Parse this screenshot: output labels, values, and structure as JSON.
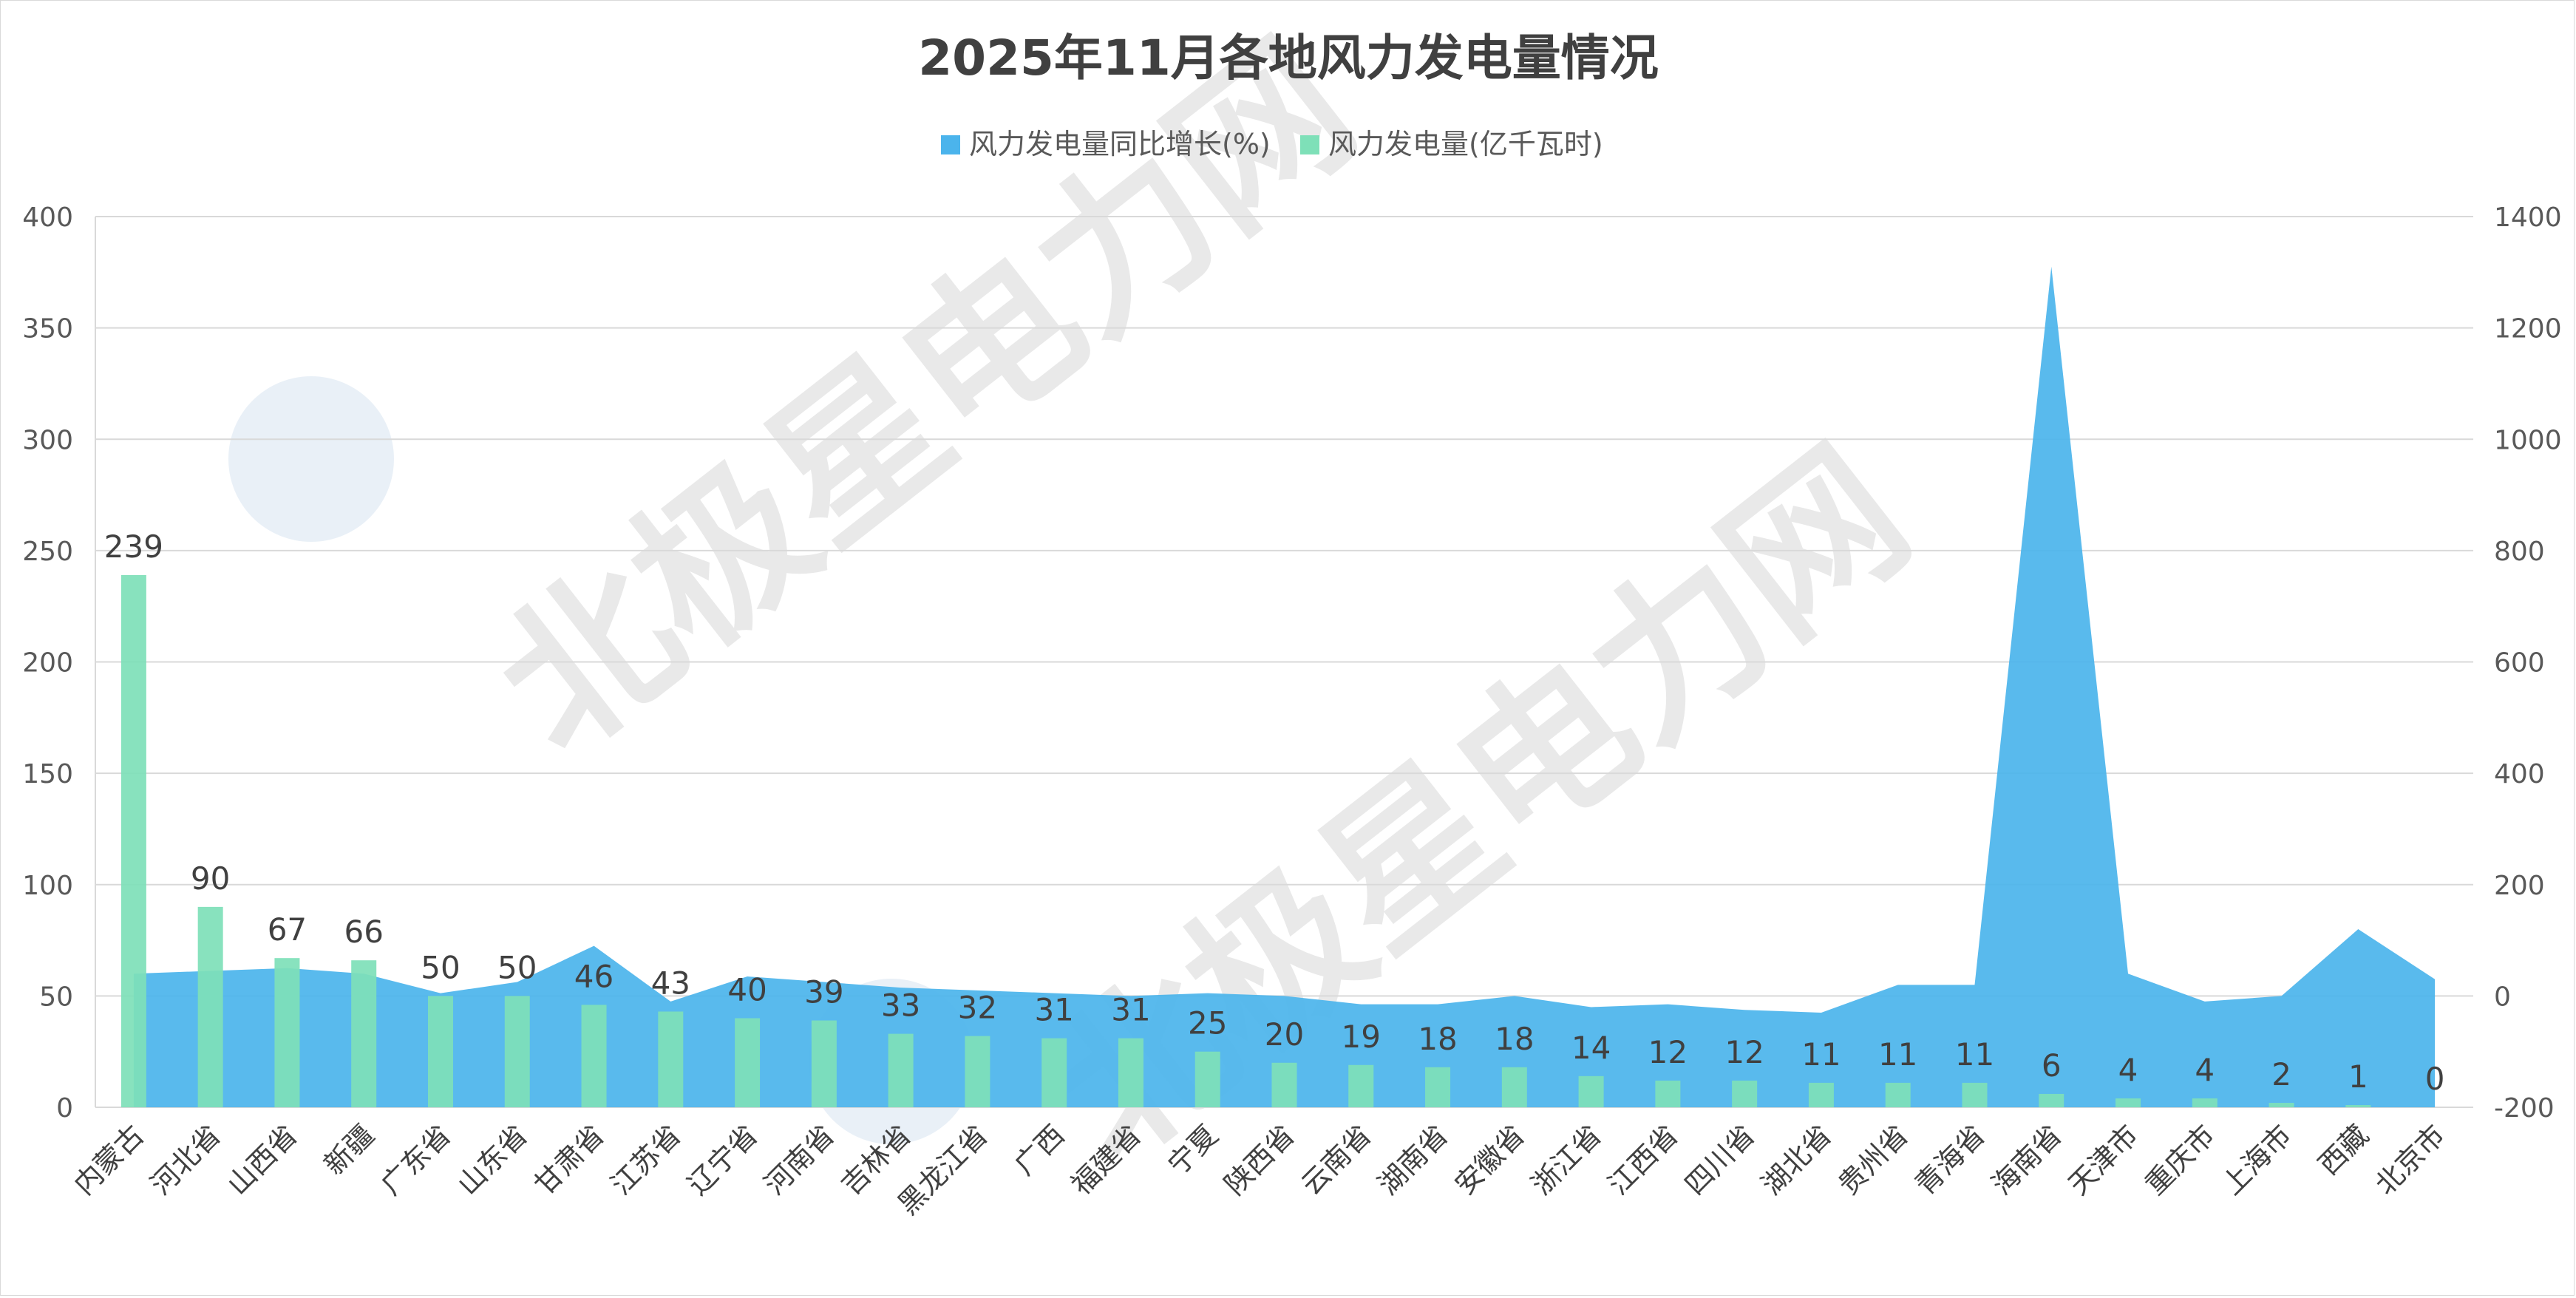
{
  "chart_data": {
    "type": "bar",
    "title": "2025年11月各地风力发电量情况",
    "categories": [
      "内蒙古",
      "河北省",
      "山西省",
      "新疆",
      "广东省",
      "山东省",
      "甘肃省",
      "江苏省",
      "辽宁省",
      "河南省",
      "吉林省",
      "黑龙江省",
      "广西",
      "福建省",
      "宁夏",
      "陕西省",
      "云南省",
      "湖南省",
      "安徽省",
      "浙江省",
      "江西省",
      "四川省",
      "湖北省",
      "贵州省",
      "青海省",
      "海南省",
      "天津市",
      "重庆市",
      "上海市",
      "西藏",
      "北京市"
    ],
    "legend_position": "top",
    "grid": true,
    "y_left": {
      "min": 0,
      "max": 400,
      "ticks": [
        "0",
        "50",
        "100",
        "150",
        "200",
        "250",
        "300",
        "350",
        "400"
      ]
    },
    "y_right": {
      "min": -200,
      "max": 1400,
      "ticks": [
        "-200",
        "0",
        "200",
        "400",
        "600",
        "800",
        "1000",
        "1200",
        "1400"
      ]
    },
    "series": [
      {
        "name": "风力发电量同比增长(%)",
        "type": "area",
        "axis": "right",
        "color": "#4BB4EC",
        "values": [
          40,
          45,
          50,
          40,
          5,
          25,
          90,
          -10,
          35,
          25,
          15,
          10,
          5,
          0,
          5,
          0,
          -15,
          -15,
          0,
          -20,
          -15,
          -25,
          -30,
          20,
          20,
          1310,
          40,
          -10,
          0,
          120,
          30
        ]
      },
      {
        "name": "风力发电量(亿千瓦时)",
        "type": "bar",
        "axis": "left",
        "color": "#7EE0B8",
        "values": [
          239,
          90,
          67,
          66,
          50,
          50,
          46,
          43,
          40,
          39,
          33,
          32,
          31,
          31,
          25,
          20,
          19,
          18,
          18,
          14,
          12,
          12,
          11,
          11,
          11,
          6,
          4,
          4,
          2,
          1,
          0
        ],
        "labels": [
          "239",
          "90",
          "67",
          "66",
          "50",
          "50",
          "46",
          "43",
          "40",
          "39",
          "33",
          "32",
          "31",
          "31",
          "25",
          "20",
          "19",
          "18",
          "18",
          "14",
          "12",
          "12",
          "11",
          "11",
          "11",
          "6",
          "4",
          "4",
          "2",
          "1",
          "0"
        ]
      }
    ],
    "watermark": "北极星电力网"
  }
}
